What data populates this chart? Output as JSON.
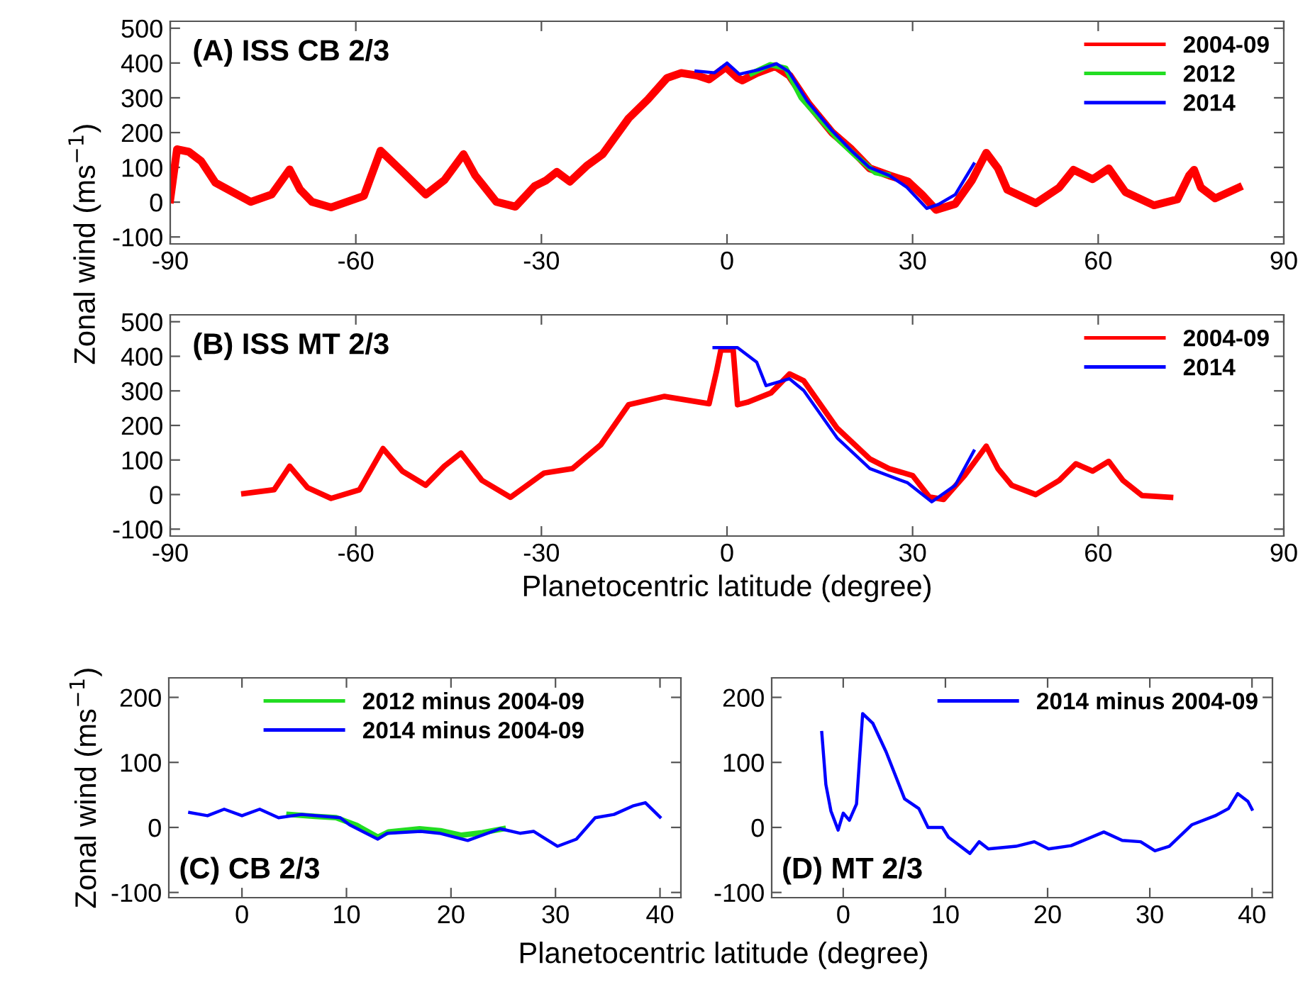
{
  "chart_data": [
    {
      "type": "line",
      "title": "(A) ISS CB 2/3",
      "ylabel": "Zonal wind (ms$^{−1}$)",
      "xlim": [
        -90,
        90
      ],
      "xticks": [
        -90,
        -60,
        -30,
        0,
        30,
        60,
        90
      ],
      "ylim": [
        -120,
        520
      ],
      "yticks": [
        -100,
        0,
        100,
        200,
        300,
        400,
        500
      ],
      "legend": "top right",
      "grid": false,
      "line_style": "solid",
      "marker": "none",
      "series": [
        {
          "name": "2004-09",
          "color": "#ff0000",
          "x": [
            -90,
            -88.9,
            -87,
            -85,
            -82.7,
            -77,
            -73.6,
            -70.7,
            -69,
            -67.1,
            -64,
            -58.7,
            -56,
            -52.6,
            -48.7,
            -45.7,
            -42.6,
            -40.7,
            -37.3,
            -34.2,
            -31.1,
            -29.2,
            -27.5,
            -25.4,
            -22.7,
            -20.1,
            -15.9,
            -12.8,
            -9.7,
            -7.4,
            -4.8,
            -2.9,
            -0.2,
            1.7,
            2.5,
            4.8,
            7.8,
            10.1,
            13.2,
            17,
            20.1,
            23.1,
            26.2,
            29.2,
            31.5,
            33.8,
            36.9,
            39.6,
            41.9,
            43.8,
            45.3,
            49.9,
            53.7,
            56,
            59.1,
            61.7,
            64.4,
            69,
            72.8,
            74.7,
            75.5,
            76.6,
            78.9,
            82.7
          ],
          "values": [
            8,
            152,
            145,
            118,
            56,
            1,
            22,
            94,
            36,
            1,
            -15,
            18,
            148,
            90,
            22,
            63,
            138,
            77,
            1,
            -13,
            46,
            63,
            87,
            59,
            104,
            138,
            241,
            295,
            357,
            371,
            364,
            353,
            388,
            357,
            350,
            371,
            391,
            364,
            282,
            200,
            152,
            97,
            77,
            60,
            22,
            -22,
            -5,
            63,
            142,
            97,
            36,
            -3,
            42,
            93,
            66,
            97,
            29,
            -9,
            8,
            77,
            93,
            42,
            11,
            42
          ]
        },
        {
          "name": "2012",
          "color": "#22dd22",
          "x": [
            4,
            7,
            9.5,
            12,
            15,
            18,
            21,
            24,
            26
          ],
          "values": [
            370,
            395,
            385,
            300,
            240,
            180,
            130,
            85,
            78
          ]
        },
        {
          "name": "2014",
          "color": "#0000ff",
          "x": [
            -5,
            -2,
            0,
            2,
            5,
            8,
            10,
            13,
            17,
            20,
            23,
            26.2,
            29,
            32.3,
            34.2,
            36.9,
            39.9
          ],
          "values": [
            377,
            372,
            400,
            368,
            380,
            398,
            375,
            290,
            205,
            150,
            100,
            77,
            44,
            -18,
            -6,
            22,
            110
          ]
        }
      ]
    },
    {
      "type": "line",
      "title": "(B) ISS MT 2/3",
      "xlabel": "Planetocentric latitude (degree)",
      "xlim": [
        -90,
        90
      ],
      "xticks": [
        -90,
        -60,
        -30,
        0,
        30,
        60,
        90
      ],
      "ylim": [
        -120,
        520
      ],
      "yticks": [
        -100,
        0,
        100,
        200,
        300,
        400,
        500
      ],
      "legend": "top right",
      "grid": false,
      "line_style": "solid",
      "marker": "none",
      "series": [
        {
          "name": "2004-09",
          "color": "#ff0000",
          "x": [
            -78.1,
            -73.2,
            -70.7,
            -67.8,
            -64,
            -59.4,
            -55.6,
            -52.5,
            -48.7,
            -45.7,
            -43,
            -39.6,
            -35,
            -29.6,
            -25,
            -20.4,
            -15.9,
            -10.1,
            -2.9,
            -1.7,
            -1,
            1,
            1.7,
            3.3,
            7.1,
            10.1,
            12.4,
            17.8,
            23.1,
            26.2,
            30,
            32.7,
            35,
            38.4,
            41.9,
            43.8,
            46,
            49.9,
            53.7,
            56.4,
            59.1,
            61.7,
            64,
            67.1,
            71.7
          ],
          "values": [
            3,
            14,
            82,
            20,
            -11,
            14,
            133,
            68,
            27,
            82,
            120,
            41,
            -8,
            62,
            75,
            144,
            260,
            284,
            263,
            356,
            418,
            418,
            260,
            267,
            294,
            349,
            329,
            192,
            103,
            75,
            55,
            -7,
            -14,
            55,
            140,
            75,
            27,
            0,
            41,
            89,
            68,
            96,
            41,
            -3,
            -8
          ]
        },
        {
          "name": "2014",
          "color": "#0000ff",
          "x": [
            -2.1,
            1.7,
            4.8,
            6.3,
            10.1,
            12.4,
            17.8,
            23.1,
            29.2,
            33.1,
            36.9,
            39.9
          ],
          "values": [
            425,
            425,
            383,
            315,
            335,
            301,
            164,
            75,
            34,
            -21,
            27,
            126
          ]
        }
      ]
    },
    {
      "type": "line",
      "title": "(C) CB 2/3",
      "ylabel": "Zonal wind (ms$^{−1}$)",
      "xlabel": "Planetocentric latitude (degree)",
      "xlim": [
        -7,
        42
      ],
      "xticks": [
        0,
        10,
        20,
        30,
        40
      ],
      "ylim": [
        -108,
        230
      ],
      "yticks": [
        -100,
        0,
        100,
        200
      ],
      "legend": "top",
      "grid": false,
      "line_style": "solid",
      "marker": "none",
      "series": [
        {
          "name": "2012 minus 2004-09",
          "color": "#22dd22",
          "x": [
            4.5,
            7,
            9,
            11,
            13,
            14,
            17,
            19,
            21,
            23,
            25
          ],
          "values": [
            20,
            17,
            15,
            3,
            -15,
            -7,
            -2,
            -5,
            -12,
            -8,
            -2
          ]
        },
        {
          "name": "2014 minus 2004-09",
          "color": "#0000ff",
          "x": [
            -5,
            -3.3,
            -1.7,
            0,
            1.7,
            3.5,
            5.7,
            9.4,
            10.3,
            13,
            13.9,
            17.1,
            18.9,
            21.6,
            24.7,
            26.6,
            27.9,
            30.2,
            32,
            33.8,
            35.6,
            37.4,
            38.6,
            40
          ],
          "values": [
            23,
            18,
            28,
            18,
            28,
            15,
            20,
            15,
            4,
            -18,
            -9,
            -6,
            -9,
            -20,
            -2,
            -9,
            -6,
            -29,
            -18,
            15,
            20,
            33,
            38,
            16
          ]
        }
      ]
    },
    {
      "type": "line",
      "title": "(D) MT 2/3",
      "xlim": [
        -7,
        42
      ],
      "xticks": [
        0,
        10,
        20,
        30,
        40
      ],
      "ylim": [
        -108,
        230
      ],
      "yticks": [
        -100,
        0,
        100,
        200
      ],
      "legend": "top right",
      "grid": false,
      "line_style": "solid",
      "marker": "none",
      "series": [
        {
          "name": "2014 minus 2004-09",
          "color": "#0000ff",
          "x": [
            -2.1,
            -1.7,
            -1.2,
            -0.5,
            0,
            0.6,
            1.3,
            1.9,
            2.9,
            4.2,
            6,
            7.4,
            8.3,
            9.7,
            10.3,
            12.4,
            13.3,
            14.2,
            16.9,
            18.7,
            20.1,
            22.3,
            25.5,
            27.3,
            29.1,
            30.5,
            31.9,
            34.1,
            36.4,
            37.7,
            38.6,
            39.6,
            40
          ],
          "values": [
            146,
            66,
            25,
            -4,
            22,
            11,
            36,
            175,
            160,
            116,
            44,
            29,
            0,
            0,
            -15,
            -40,
            -22,
            -33,
            -29,
            -22,
            -33,
            -28,
            -7,
            -20,
            -22,
            -36,
            -29,
            4,
            18,
            29,
            52,
            40,
            28
          ]
        }
      ]
    }
  ]
}
